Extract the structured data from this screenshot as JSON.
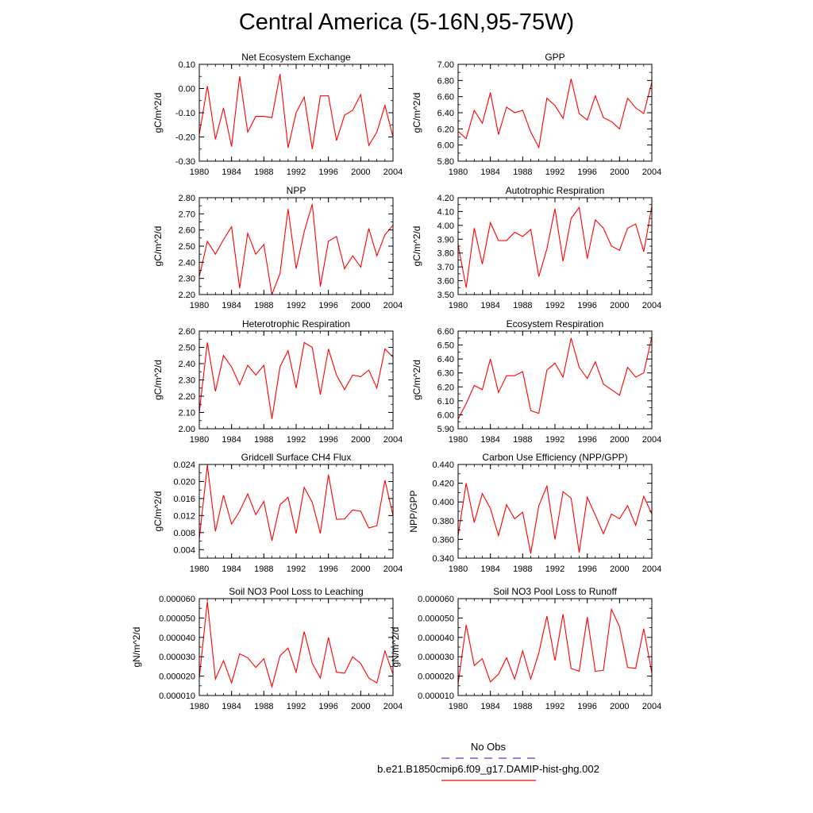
{
  "title": "Central America (5-16N,95-75W)",
  "legend": {
    "entries": [
      {
        "label": "No Obs",
        "color": "#4444cc",
        "style": "dashed"
      },
      {
        "label": "b.e21.B1850cmip6.f09_g17.DAMIP-hist-ghg.002",
        "color": "#ff0000",
        "style": "solid"
      }
    ]
  },
  "chart_data": [
    {
      "type": "line",
      "title": "Net Ecosystem Exchange",
      "ylabel": "gC/m^2/d",
      "xlim": [
        1980,
        2004
      ],
      "ylim": [
        -0.3,
        0.1
      ],
      "yticks": [
        "0.10",
        "0.00",
        "-0.10",
        "-0.20",
        "-0.30"
      ],
      "ytick_values": [
        0.1,
        0.0,
        -0.1,
        -0.2,
        -0.3
      ],
      "xticks": [
        "1980",
        "1984",
        "1988",
        "1992",
        "1996",
        "2000",
        "2004"
      ],
      "xtick_values": [
        1980,
        1984,
        1988,
        1992,
        1996,
        2000,
        2004
      ],
      "series": [
        {
          "color": "#ff0000",
          "x": [
            1980,
            1981,
            1982,
            1983,
            1984,
            1985,
            1986,
            1987,
            1988,
            1989,
            1990,
            1991,
            1992,
            1993,
            1994,
            1995,
            1996,
            1997,
            1998,
            1999,
            2000,
            2001,
            2002,
            2003,
            2004
          ],
          "values": [
            -0.19,
            0.01,
            -0.21,
            -0.08,
            -0.24,
            0.05,
            -0.18,
            -0.115,
            -0.115,
            -0.12,
            0.06,
            -0.245,
            -0.1,
            -0.035,
            -0.25,
            -0.03,
            -0.03,
            -0.215,
            -0.11,
            -0.09,
            -0.025,
            -0.235,
            -0.18,
            -0.07,
            -0.2
          ]
        }
      ]
    },
    {
      "type": "line",
      "title": "GPP",
      "ylabel": "gC/m^2/d",
      "xlim": [
        1980,
        2004
      ],
      "ylim": [
        5.8,
        7.0
      ],
      "yticks": [
        "7.00",
        "6.80",
        "6.60",
        "6.40",
        "6.20",
        "6.00",
        "5.80"
      ],
      "ytick_values": [
        7.0,
        6.8,
        6.6,
        6.4,
        6.2,
        6.0,
        5.8
      ],
      "xticks": [
        "1980",
        "1984",
        "1988",
        "1992",
        "1996",
        "2000",
        "2004"
      ],
      "xtick_values": [
        1980,
        1984,
        1988,
        1992,
        1996,
        2000,
        2004
      ],
      "series": [
        {
          "color": "#ff0000",
          "x": [
            1980,
            1981,
            1982,
            1983,
            1984,
            1985,
            1986,
            1987,
            1988,
            1989,
            1990,
            1991,
            1992,
            1993,
            1994,
            1995,
            1996,
            1997,
            1998,
            1999,
            2000,
            2001,
            2002,
            2003,
            2004
          ],
          "values": [
            6.17,
            6.08,
            6.43,
            6.27,
            6.65,
            6.13,
            6.47,
            6.4,
            6.43,
            6.16,
            5.97,
            6.58,
            6.49,
            6.33,
            6.82,
            6.39,
            6.31,
            6.61,
            6.34,
            6.29,
            6.2,
            6.58,
            6.46,
            6.39,
            6.78
          ]
        }
      ]
    },
    {
      "type": "line",
      "title": "NPP",
      "ylabel": "gC/m^2/d",
      "xlim": [
        1980,
        2004
      ],
      "ylim": [
        2.2,
        2.8
      ],
      "yticks": [
        "2.80",
        "2.70",
        "2.60",
        "2.50",
        "2.40",
        "2.30",
        "2.20"
      ],
      "ytick_values": [
        2.8,
        2.7,
        2.6,
        2.5,
        2.4,
        2.3,
        2.2
      ],
      "xticks": [
        "1980",
        "1984",
        "1988",
        "1992",
        "1996",
        "2000",
        "2004"
      ],
      "xtick_values": [
        1980,
        1984,
        1988,
        1992,
        1996,
        2000,
        2004
      ],
      "series": [
        {
          "color": "#ff0000",
          "x": [
            1980,
            1981,
            1982,
            1983,
            1984,
            1985,
            1986,
            1987,
            1988,
            1989,
            1990,
            1991,
            1992,
            1993,
            1994,
            1995,
            1996,
            1997,
            1998,
            1999,
            2000,
            2001,
            2002,
            2003,
            2004
          ],
          "values": [
            2.31,
            2.53,
            2.45,
            2.54,
            2.62,
            2.24,
            2.58,
            2.45,
            2.51,
            2.2,
            2.33,
            2.73,
            2.36,
            2.59,
            2.76,
            2.25,
            2.53,
            2.56,
            2.36,
            2.44,
            2.37,
            2.61,
            2.44,
            2.57,
            2.63
          ]
        }
      ]
    },
    {
      "type": "line",
      "title": "Autotrophic Respiration",
      "ylabel": "gC/m^2/d",
      "xlim": [
        1980,
        2004
      ],
      "ylim": [
        3.5,
        4.2
      ],
      "yticks": [
        "4.20",
        "4.10",
        "4.00",
        "3.90",
        "3.80",
        "3.70",
        "3.60",
        "3.50"
      ],
      "ytick_values": [
        4.2,
        4.1,
        4.0,
        3.9,
        3.8,
        3.7,
        3.6,
        3.5
      ],
      "xticks": [
        "1980",
        "1984",
        "1988",
        "1992",
        "1996",
        "2000",
        "2004"
      ],
      "xtick_values": [
        1980,
        1984,
        1988,
        1992,
        1996,
        2000,
        2004
      ],
      "series": [
        {
          "color": "#ff0000",
          "x": [
            1980,
            1981,
            1982,
            1983,
            1984,
            1985,
            1986,
            1987,
            1988,
            1989,
            1990,
            1991,
            1992,
            1993,
            1994,
            1995,
            1996,
            1997,
            1998,
            1999,
            2000,
            2001,
            2002,
            2003,
            2004
          ],
          "values": [
            3.86,
            3.55,
            3.98,
            3.72,
            4.02,
            3.89,
            3.89,
            3.95,
            3.92,
            3.97,
            3.63,
            3.83,
            4.12,
            3.74,
            4.05,
            4.13,
            3.76,
            4.04,
            3.98,
            3.85,
            3.82,
            3.98,
            4.01,
            3.81,
            4.14
          ]
        }
      ]
    },
    {
      "type": "line",
      "title": "Heterotrophic Respiration",
      "ylabel": "gC/m^2/d",
      "xlim": [
        1980,
        2004
      ],
      "ylim": [
        2.0,
        2.6
      ],
      "yticks": [
        "2.60",
        "2.50",
        "2.40",
        "2.30",
        "2.20",
        "2.10",
        "2.00"
      ],
      "ytick_values": [
        2.6,
        2.5,
        2.4,
        2.3,
        2.2,
        2.1,
        2.0
      ],
      "xticks": [
        "1980",
        "1984",
        "1988",
        "1992",
        "1996",
        "2000",
        "2004"
      ],
      "xtick_values": [
        1980,
        1984,
        1988,
        1992,
        1996,
        2000,
        2004
      ],
      "series": [
        {
          "color": "#ff0000",
          "x": [
            1980,
            1981,
            1982,
            1983,
            1984,
            1985,
            1986,
            1987,
            1988,
            1989,
            1990,
            1991,
            1992,
            1993,
            1994,
            1995,
            1996,
            1997,
            1998,
            1999,
            2000,
            2001,
            2002,
            2003,
            2004
          ],
          "values": [
            2.1,
            2.53,
            2.23,
            2.45,
            2.38,
            2.27,
            2.39,
            2.33,
            2.39,
            2.06,
            2.38,
            2.48,
            2.25,
            2.53,
            2.5,
            2.21,
            2.49,
            2.33,
            2.24,
            2.33,
            2.32,
            2.36,
            2.25,
            2.49,
            2.44
          ]
        }
      ]
    },
    {
      "type": "line",
      "title": "Ecosystem Respiration",
      "ylabel": "gC/m^2/d",
      "xlim": [
        1980,
        2004
      ],
      "ylim": [
        5.9,
        6.6
      ],
      "yticks": [
        "6.60",
        "6.50",
        "6.40",
        "6.30",
        "6.20",
        "6.10",
        "6.00",
        "5.90"
      ],
      "ytick_values": [
        6.6,
        6.5,
        6.4,
        6.3,
        6.2,
        6.1,
        6.0,
        5.9
      ],
      "xticks": [
        "1980",
        "1984",
        "1988",
        "1992",
        "1996",
        "2000",
        "2004"
      ],
      "xtick_values": [
        1980,
        1984,
        1988,
        1992,
        1996,
        2000,
        2004
      ],
      "series": [
        {
          "color": "#ff0000",
          "x": [
            1980,
            1981,
            1982,
            1983,
            1984,
            1985,
            1986,
            1987,
            1988,
            1989,
            1990,
            1991,
            1992,
            1993,
            1994,
            1995,
            1996,
            1997,
            1998,
            1999,
            2000,
            2001,
            2002,
            2003,
            2004
          ],
          "values": [
            5.97,
            6.08,
            6.21,
            6.18,
            6.4,
            6.16,
            6.28,
            6.28,
            6.31,
            6.03,
            6.01,
            6.32,
            6.37,
            6.27,
            6.55,
            6.34,
            6.26,
            6.38,
            6.22,
            6.18,
            6.14,
            6.34,
            6.27,
            6.3,
            6.56
          ]
        }
      ]
    },
    {
      "type": "line",
      "title": "Gridcell Surface CH4 Flux",
      "ylabel": "gC/m^2/d",
      "xlim": [
        1980,
        2004
      ],
      "ylim": [
        0.002,
        0.024
      ],
      "yticks": [
        "0.024",
        "0.020",
        "0.016",
        "0.012",
        "0.008",
        "0.004"
      ],
      "ytick_values": [
        0.024,
        0.02,
        0.016,
        0.012,
        0.008,
        0.004
      ],
      "xticks": [
        "1980",
        "1984",
        "1988",
        "1992",
        "1996",
        "2000",
        "2004"
      ],
      "xtick_values": [
        1980,
        1984,
        1988,
        1992,
        1996,
        2000,
        2004
      ],
      "series": [
        {
          "color": "#ff0000",
          "x": [
            1980,
            1981,
            1982,
            1983,
            1984,
            1985,
            1986,
            1987,
            1988,
            1989,
            1990,
            1991,
            1992,
            1993,
            1994,
            1995,
            1996,
            1997,
            1998,
            1999,
            2000,
            2001,
            2002,
            2003,
            2004
          ],
          "values": [
            0.0065,
            0.0238,
            0.0083,
            0.0168,
            0.01,
            0.013,
            0.0171,
            0.0122,
            0.0153,
            0.0061,
            0.0145,
            0.0163,
            0.0078,
            0.0186,
            0.0151,
            0.0078,
            0.0216,
            0.0111,
            0.0112,
            0.0133,
            0.013,
            0.0091,
            0.0096,
            0.0203,
            0.012
          ]
        }
      ]
    },
    {
      "type": "line",
      "title": "Carbon Use Efficiency (NPP/GPP)",
      "ylabel": "NPP/GPP",
      "xlim": [
        1980,
        2004
      ],
      "ylim": [
        0.34,
        0.44
      ],
      "yticks": [
        "0.440",
        "0.420",
        "0.400",
        "0.380",
        "0.360",
        "0.340"
      ],
      "ytick_values": [
        0.44,
        0.42,
        0.4,
        0.38,
        0.36,
        0.34
      ],
      "xticks": [
        "1980",
        "1984",
        "1988",
        "1992",
        "1996",
        "2000",
        "2004"
      ],
      "xtick_values": [
        1980,
        1984,
        1988,
        1992,
        1996,
        2000,
        2004
      ],
      "series": [
        {
          "color": "#ff0000",
          "x": [
            1980,
            1981,
            1982,
            1983,
            1984,
            1985,
            1986,
            1987,
            1988,
            1989,
            1990,
            1991,
            1992,
            1993,
            1994,
            1995,
            1996,
            1997,
            1998,
            1999,
            2000,
            2001,
            2002,
            2003,
            2004
          ],
          "values": [
            0.364,
            0.42,
            0.378,
            0.409,
            0.393,
            0.364,
            0.397,
            0.382,
            0.389,
            0.345,
            0.396,
            0.417,
            0.36,
            0.411,
            0.404,
            0.346,
            0.405,
            0.386,
            0.366,
            0.387,
            0.382,
            0.396,
            0.375,
            0.406,
            0.387
          ]
        }
      ]
    },
    {
      "type": "line",
      "title": "Soil NO3 Pool Loss to Leaching",
      "ylabel": "gN/m^2/d",
      "xlim": [
        1980,
        2004
      ],
      "ylim": [
        1e-05,
        6e-05
      ],
      "yticks": [
        "0.000060",
        "0.000050",
        "0.000040",
        "0.000030",
        "0.000020",
        "0.000010"
      ],
      "ytick_values": [
        6e-05,
        5e-05,
        4e-05,
        3e-05,
        2e-05,
        1e-05
      ],
      "xticks": [
        "1980",
        "1984",
        "1988",
        "1992",
        "1996",
        "2000",
        "2004"
      ],
      "xtick_values": [
        1980,
        1984,
        1988,
        1992,
        1996,
        2000,
        2004
      ],
      "series": [
        {
          "color": "#ff0000",
          "x": [
            1980,
            1981,
            1982,
            1983,
            1984,
            1985,
            1986,
            1987,
            1988,
            1989,
            1990,
            1991,
            1992,
            1993,
            1994,
            1995,
            1996,
            1997,
            1998,
            1999,
            2000,
            2001,
            2002,
            2003,
            2004
          ],
          "values": [
            1.9e-05,
            5.85e-05,
            1.85e-05,
            2.8e-05,
            1.65e-05,
            3.15e-05,
            2.95e-05,
            2.45e-05,
            2.9e-05,
            1.45e-05,
            3.05e-05,
            3.45e-05,
            2.2e-05,
            4.3e-05,
            2.65e-05,
            1.9e-05,
            4e-05,
            2.2e-05,
            2.15e-05,
            3e-05,
            2.65e-05,
            1.9e-05,
            1.65e-05,
            3.3e-05,
            2.1e-05
          ]
        }
      ]
    },
    {
      "type": "line",
      "title": "Soil NO3 Pool Loss to Runoff",
      "ylabel": "gN/m^2/d",
      "xlim": [
        1980,
        2004
      ],
      "ylim": [
        1e-05,
        6e-05
      ],
      "yticks": [
        "0.000060",
        "0.000050",
        "0.000040",
        "0.000030",
        "0.000020",
        "0.000010"
      ],
      "ytick_values": [
        6e-05,
        5e-05,
        4e-05,
        3e-05,
        2e-05,
        1e-05
      ],
      "xticks": [
        "1980",
        "1984",
        "1988",
        "1992",
        "1996",
        "2000",
        "2004"
      ],
      "xtick_values": [
        1980,
        1984,
        1988,
        1992,
        1996,
        2000,
        2004
      ],
      "series": [
        {
          "color": "#ff0000",
          "x": [
            1980,
            1981,
            1982,
            1983,
            1984,
            1985,
            1986,
            1987,
            1988,
            1989,
            1990,
            1991,
            1992,
            1993,
            1994,
            1995,
            1996,
            1997,
            1998,
            1999,
            2000,
            2001,
            2002,
            2003,
            2004
          ],
          "values": [
            1.6e-05,
            4.65e-05,
            2.55e-05,
            2.9e-05,
            1.7e-05,
            2.1e-05,
            2.95e-05,
            1.85e-05,
            3.3e-05,
            1.85e-05,
            3.2e-05,
            5.1e-05,
            2.8e-05,
            5.2e-05,
            2.4e-05,
            2.25e-05,
            5.05e-05,
            2.25e-05,
            2.3e-05,
            5.45e-05,
            4.55e-05,
            2.45e-05,
            2.4e-05,
            4.45e-05,
            2.15e-05
          ]
        }
      ]
    }
  ]
}
